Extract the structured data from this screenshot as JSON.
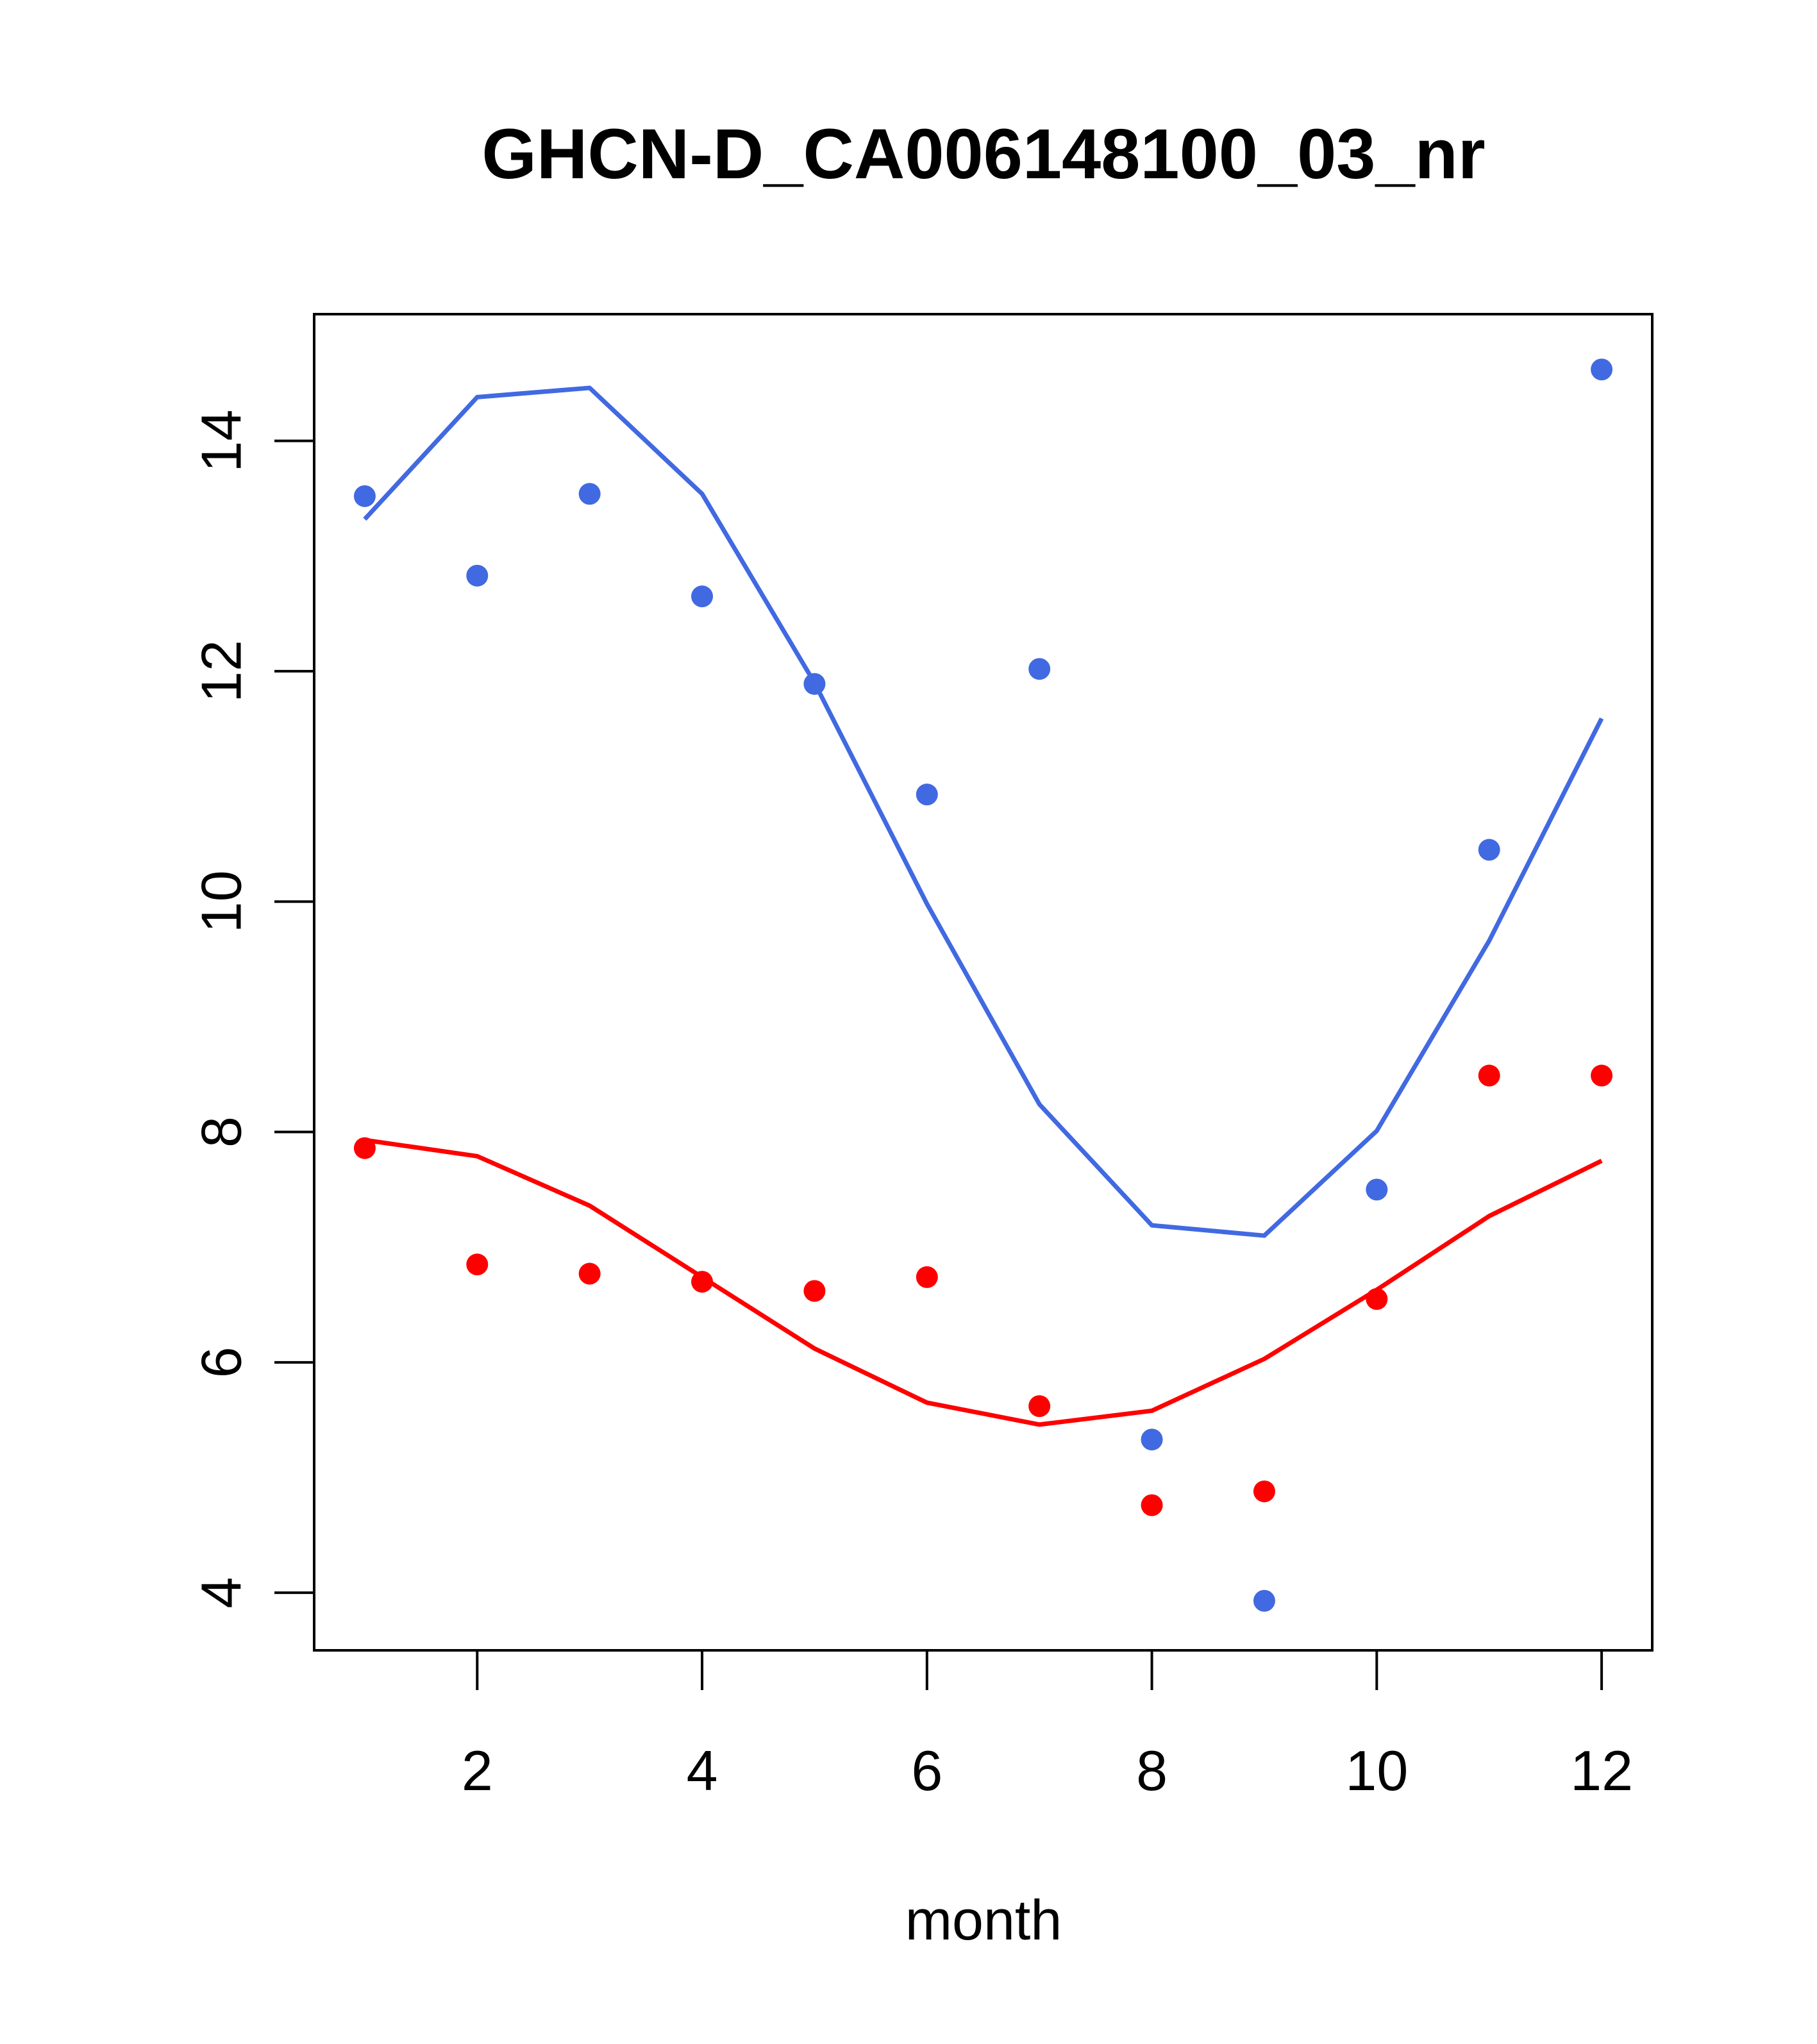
{
  "chart_data": {
    "type": "line",
    "title": "GHCN-D_CA006148100_03_nr",
    "xlabel": "month",
    "ylabel": "",
    "xlim": [
      0.55,
      12.45
    ],
    "ylim": [
      3.5,
      15.1
    ],
    "xticks": [
      2,
      4,
      6,
      8,
      10,
      12
    ],
    "yticks": [
      4,
      6,
      8,
      10,
      12,
      14
    ],
    "grid": false,
    "legend": "none",
    "x": [
      1,
      2,
      3,
      4,
      5,
      6,
      7,
      8,
      9,
      10,
      11,
      12
    ],
    "series": [
      {
        "name": "blue points",
        "kind": "points",
        "color": "#4169E1",
        "values": [
          13.52,
          12.83,
          13.54,
          12.65,
          11.89,
          10.93,
          12.02,
          5.33,
          3.93,
          7.5,
          10.45,
          14.62
        ]
      },
      {
        "name": "blue fitted line",
        "kind": "line",
        "color": "#4169E1",
        "values": [
          13.32,
          14.38,
          14.46,
          13.54,
          11.9,
          9.98,
          8.24,
          7.19,
          7.1,
          8.01,
          9.66,
          11.59
        ]
      },
      {
        "name": "red points",
        "kind": "points",
        "color": "#FF0000",
        "values": [
          7.86,
          6.85,
          6.77,
          6.7,
          6.62,
          6.74,
          5.62,
          4.76,
          4.88,
          6.55,
          8.49,
          8.49
        ]
      },
      {
        "name": "red fitted line",
        "kind": "line",
        "color": "#FF0000",
        "values": [
          7.93,
          7.79,
          7.36,
          6.74,
          6.12,
          5.65,
          5.46,
          5.58,
          6.03,
          6.63,
          7.27,
          7.75
        ]
      }
    ]
  }
}
